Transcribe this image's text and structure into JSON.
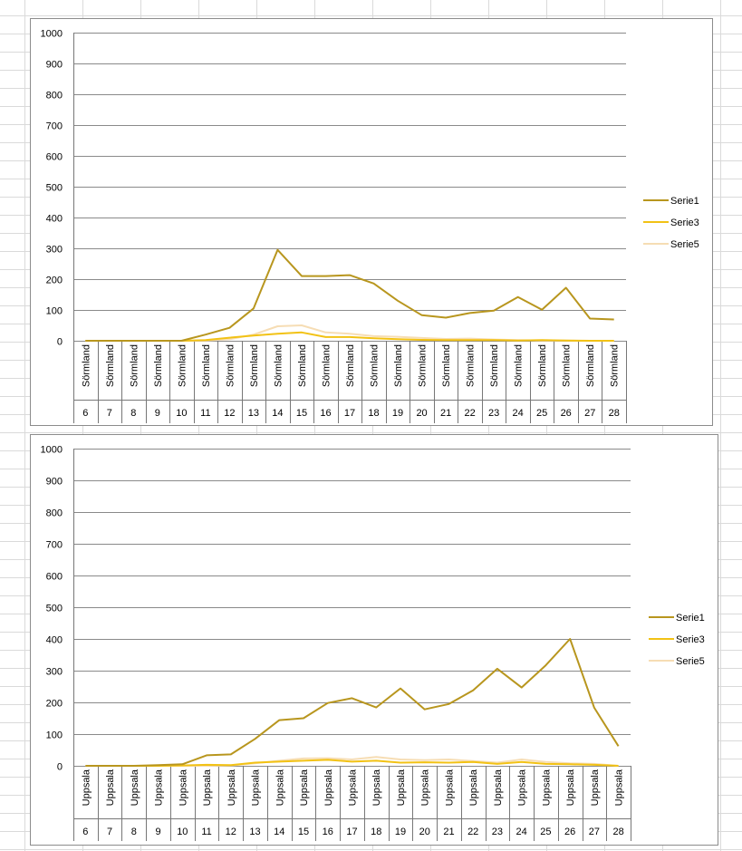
{
  "chart_data": [
    {
      "type": "line",
      "ylim": [
        0,
        1000
      ],
      "yticks": [
        "0",
        "100",
        "200",
        "300",
        "400",
        "500",
        "600",
        "700",
        "800",
        "900",
        "1000"
      ],
      "categories": [
        "Sörmland",
        "Sörmland",
        "Sörmland",
        "Sörmland",
        "Sörmland",
        "Sörmland",
        "Sörmland",
        "Sörmland",
        "Sörmland",
        "Sörmland",
        "Sörmland",
        "Sörmland",
        "Sörmland",
        "Sörmland",
        "Sörmland",
        "Sörmland",
        "Sörmland",
        "Sörmland",
        "Sörmland",
        "Sörmland",
        "Sörmland",
        "Sörmland",
        "Sörmland"
      ],
      "weeks": [
        "6",
        "7",
        "8",
        "9",
        "10",
        "11",
        "12",
        "13",
        "14",
        "15",
        "16",
        "17",
        "18",
        "19",
        "20",
        "21",
        "22",
        "23",
        "24",
        "25",
        "26",
        "27",
        "28"
      ],
      "legend_position": "right",
      "series": [
        {
          "name": "Serie1",
          "color": "#B8961E",
          "values": [
            0,
            0,
            0,
            0,
            0,
            20,
            42,
            105,
            295,
            210,
            210,
            213,
            186,
            130,
            83,
            75,
            90,
            98,
            142,
            101,
            172,
            72,
            69
          ]
        },
        {
          "name": "Serie3",
          "color": "#F2C215",
          "values": [
            0,
            0,
            0,
            0,
            0,
            2,
            10,
            17,
            23,
            27,
            12,
            12,
            8,
            5,
            3,
            2,
            2,
            2,
            1,
            2,
            1,
            0,
            0
          ]
        },
        {
          "name": "Serie5",
          "color": "#F6DDB4",
          "values": [
            0,
            0,
            0,
            0,
            0,
            1,
            5,
            20,
            47,
            50,
            27,
            23,
            15,
            13,
            9,
            6,
            7,
            4,
            2,
            1,
            1,
            0,
            0
          ]
        }
      ]
    },
    {
      "type": "line",
      "ylim": [
        0,
        1000
      ],
      "yticks": [
        "0",
        "100",
        "200",
        "300",
        "400",
        "500",
        "600",
        "700",
        "800",
        "900",
        "1000"
      ],
      "categories": [
        "Uppsala",
        "Uppsala",
        "Uppsala",
        "Uppsala",
        "Uppsala",
        "Uppsala",
        "Uppsala",
        "Uppsala",
        "Uppsala",
        "Uppsala",
        "Uppsala",
        "Uppsala",
        "Uppsala",
        "Uppsala",
        "Uppsala",
        "Uppsala",
        "Uppsala",
        "Uppsala",
        "Uppsala",
        "Uppsala",
        "Uppsala",
        "Uppsala",
        "Uppsala"
      ],
      "weeks": [
        "6",
        "7",
        "8",
        "9",
        "10",
        "11",
        "12",
        "13",
        "14",
        "15",
        "16",
        "17",
        "18",
        "19",
        "20",
        "21",
        "22",
        "23",
        "24",
        "25",
        "26",
        "27",
        "28"
      ],
      "legend_position": "right",
      "series": [
        {
          "name": "Serie1",
          "color": "#B8961E",
          "values": [
            0,
            0,
            0,
            2,
            5,
            33,
            36,
            85,
            144,
            150,
            198,
            213,
            184,
            244,
            178,
            195,
            238,
            306,
            247,
            317,
            400,
            183,
            62
          ]
        },
        {
          "name": "Serie3",
          "color": "#F2C215",
          "values": [
            0,
            0,
            0,
            0,
            1,
            3,
            2,
            10,
            13,
            16,
            19,
            13,
            16,
            10,
            11,
            10,
            12,
            6,
            12,
            6,
            5,
            3,
            0
          ]
        },
        {
          "name": "Serie5",
          "color": "#F6DDB4",
          "values": [
            0,
            0,
            0,
            0,
            0,
            0,
            1,
            8,
            16,
            23,
            24,
            20,
            28,
            20,
            18,
            20,
            15,
            10,
            20,
            12,
            8,
            6,
            0
          ]
        }
      ]
    }
  ]
}
